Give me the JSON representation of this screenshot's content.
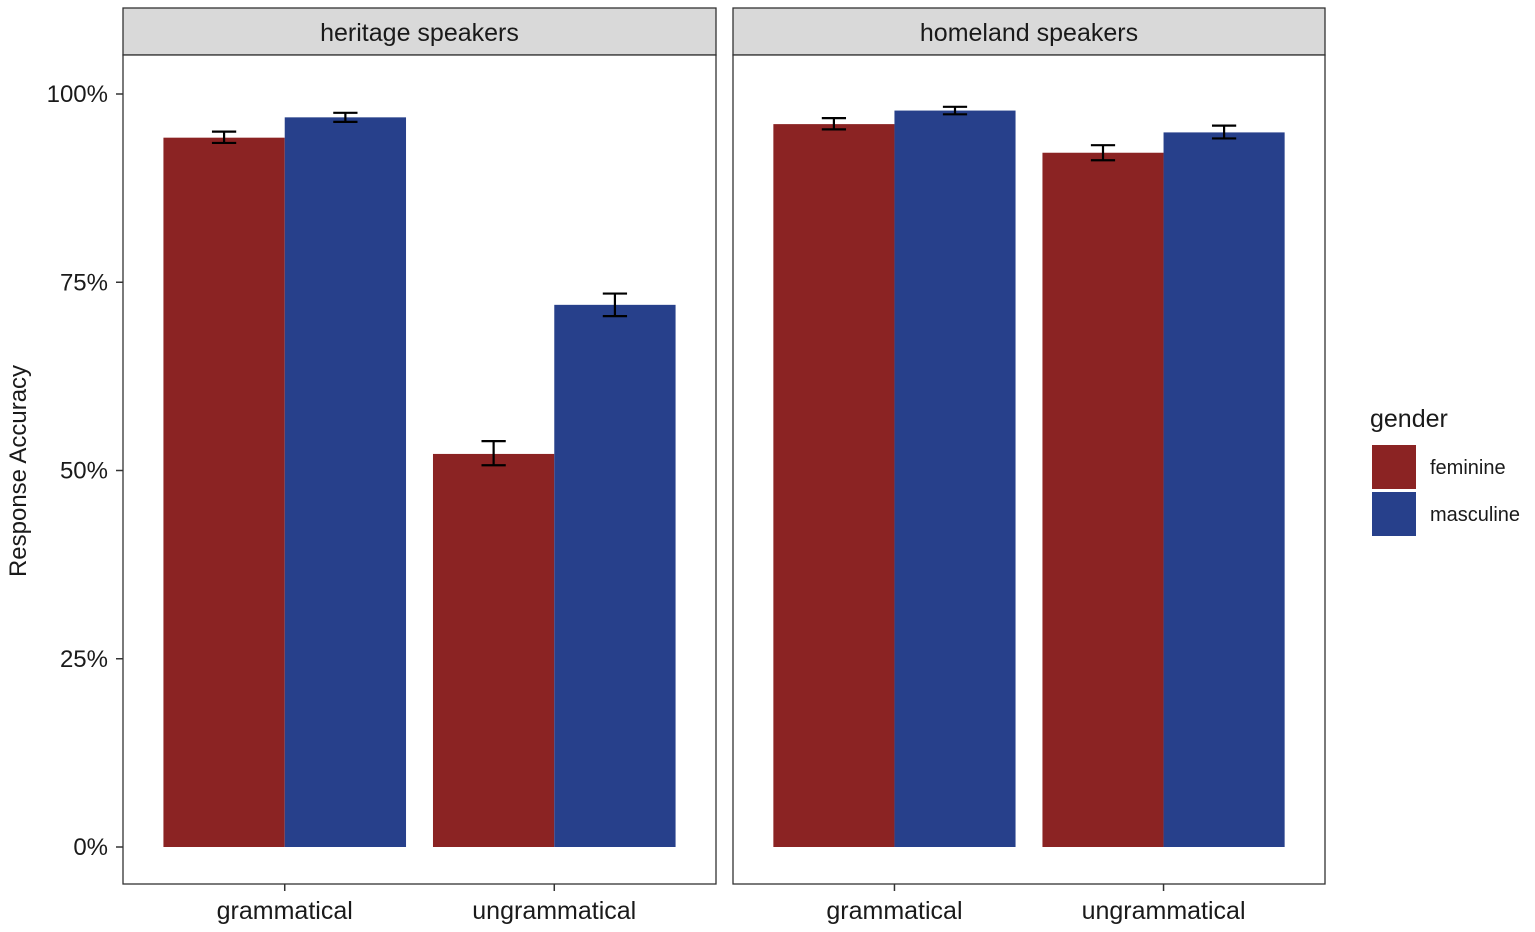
{
  "chart_data": {
    "type": "bar",
    "ylabel": "Response Accuracy",
    "xlabel": "",
    "ylim": [
      0,
      1.05
    ],
    "y_ticks": [
      0,
      0.25,
      0.5,
      0.75,
      1.0
    ],
    "y_tick_labels": [
      "0%",
      "25%",
      "50%",
      "75%",
      "100%"
    ],
    "categories": [
      "grammatical",
      "ungrammatical"
    ],
    "grid": false,
    "legend": {
      "title": "gender",
      "position": "right",
      "entries": [
        {
          "label": "feminine",
          "color": "#8B2323"
        },
        {
          "label": "masculine",
          "color": "#27408B"
        }
      ]
    },
    "panels": [
      {
        "title": "heritage speakers",
        "series": [
          {
            "name": "feminine",
            "values": [
              0.942,
              0.522
            ],
            "error_low": [
              0.935,
              0.507
            ],
            "error_high": [
              0.95,
              0.539
            ]
          },
          {
            "name": "masculine",
            "values": [
              0.969,
              0.72
            ],
            "error_low": [
              0.963,
              0.705
            ],
            "error_high": [
              0.975,
              0.735
            ]
          }
        ]
      },
      {
        "title": "homeland speakers",
        "series": [
          {
            "name": "feminine",
            "values": [
              0.96,
              0.922
            ],
            "error_low": [
              0.953,
              0.912
            ],
            "error_high": [
              0.968,
              0.932
            ]
          },
          {
            "name": "masculine",
            "values": [
              0.978,
              0.949
            ],
            "error_low": [
              0.973,
              0.941
            ],
            "error_high": [
              0.983,
              0.958
            ]
          }
        ]
      }
    ]
  }
}
